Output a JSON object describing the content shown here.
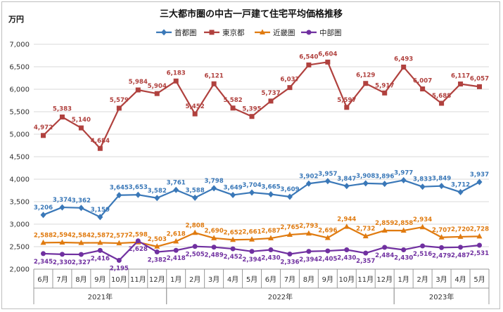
{
  "chart_data": {
    "type": "line",
    "title": "三大都市圏の中古一戸建て住宅平均価格推移",
    "ylabel": "万円",
    "ylim": [
      2000,
      7000
    ],
    "yticks": [
      "2,000",
      "2,500",
      "3,000",
      "3,500",
      "4,000",
      "4,500",
      "5,000",
      "5,500",
      "6,000",
      "6,500",
      "7,000"
    ],
    "categories": [
      "6月",
      "7月",
      "8月",
      "9月",
      "10月",
      "11月",
      "12月",
      "1月",
      "2月",
      "3月",
      "4月",
      "5月",
      "6月",
      "7月",
      "8月",
      "9月",
      "10月",
      "11月",
      "12月",
      "1月",
      "2月",
      "3月",
      "4月",
      "5月"
    ],
    "years": [
      {
        "label": "2021年",
        "start": 0,
        "end": 6
      },
      {
        "label": "2022年",
        "start": 7,
        "end": 18
      },
      {
        "label": "2023年",
        "start": 19,
        "end": 23
      }
    ],
    "series": [
      {
        "name": "首都圏",
        "color": "#3a78b8",
        "marker": "diamond",
        "values": [
          3206,
          3374,
          3362,
          3159,
          3645,
          3653,
          3582,
          3761,
          3588,
          3798,
          3649,
          3704,
          3665,
          3609,
          3902,
          3957,
          3847,
          3908,
          3896,
          3977,
          3833,
          3849,
          3712,
          3937
        ],
        "labels": [
          "3,206",
          "3,374",
          "3,362",
          "3,159",
          "3,645",
          "3,653",
          "3,582",
          "3,761",
          "3,588",
          "3,798",
          "3,649",
          "3,704",
          "3,665",
          "3,609",
          "3,902",
          "3,957",
          "3,847",
          "3,908",
          "3,896",
          "3,977",
          "3,833",
          "3,849",
          "3,712",
          "3,937"
        ]
      },
      {
        "name": "東京都",
        "color": "#b0413e",
        "marker": "square",
        "values": [
          4972,
          5383,
          5140,
          4684,
          5579,
          5984,
          5904,
          6183,
          5452,
          6121,
          5582,
          5395,
          5737,
          6037,
          6540,
          6604,
          5597,
          6129,
          5917,
          6493,
          6007,
          5688,
          6117,
          6057
        ],
        "labels": [
          "4,972",
          "5,383",
          "5,140",
          "4,684",
          "5,579",
          "5,984",
          "5,904",
          "6,183",
          "5,452",
          "6,121",
          "5,582",
          "5,395",
          "5,737",
          "6,037",
          "6,540",
          "6,604",
          "5,597",
          "6,129",
          "5,917",
          "6,493",
          "6,007",
          "5,688",
          "6,117",
          "6,057"
        ]
      },
      {
        "name": "近畿圏",
        "color": "#e07b10",
        "marker": "triangle",
        "values": [
          2588,
          2594,
          2584,
          2587,
          2577,
          2598,
          2503,
          2618,
          2808,
          2690,
          2652,
          2661,
          2687,
          2765,
          2793,
          2696,
          2944,
          2732,
          2859,
          2858,
          2934,
          2707,
          2720,
          2728
        ],
        "labels": [
          "2,588",
          "2,594",
          "2,584",
          "2,587",
          "2,577",
          "2,598",
          "2,503",
          "2,618",
          "2,808",
          "2,690",
          "2,652",
          "2,661",
          "2,687",
          "2,765",
          "2,793",
          "2,696",
          "2,944",
          "2,732",
          "2,859",
          "2,858",
          "2,934",
          "2,707",
          "2,720",
          "2,728"
        ]
      },
      {
        "name": "中部圏",
        "color": "#7030a0",
        "marker": "circle",
        "values": [
          2345,
          2330,
          2327,
          2416,
          2195,
          2628,
          2382,
          2418,
          2505,
          2489,
          2452,
          2394,
          2430,
          2336,
          2394,
          2405,
          2430,
          2357,
          2484,
          2430,
          2516,
          2479,
          2487,
          2531
        ],
        "labels": [
          "2,345",
          "2,330",
          "2,327",
          "2,416",
          "2,195",
          "2,628",
          "2,382",
          "2,418",
          "2,505",
          "2,489",
          "2,452",
          "2,394",
          "2,430",
          "2,336",
          "2,394",
          "2,405",
          "2,430",
          "2,357",
          "2,484",
          "2,430",
          "2,516",
          "2,479",
          "2,487",
          "2,531"
        ]
      }
    ]
  }
}
